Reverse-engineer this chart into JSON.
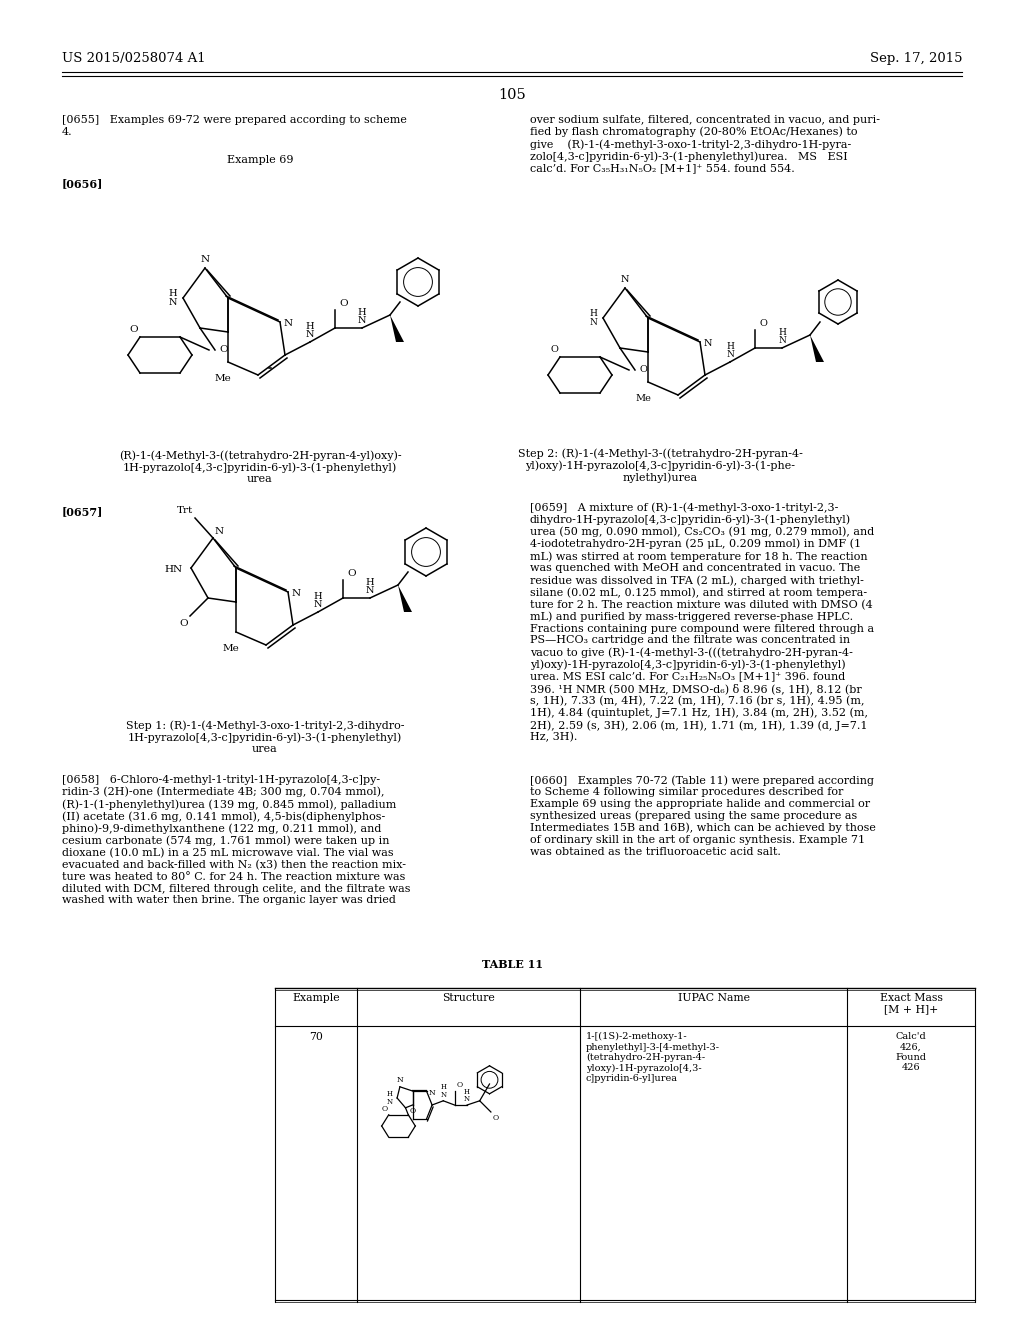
{
  "header_left": "US 2015/0258074 A1",
  "header_right": "Sep. 17, 2015",
  "page_number": "105",
  "bg_color": "#ffffff",
  "para_0655": "[0655]   Examples 69-72 were prepared according to scheme\n4.",
  "para_ex69": "Example 69",
  "para_0656": "[0656]",
  "caption_left": "(R)-1-(4-Methyl-3-((tetrahydro-2H-pyran-4-yl)oxy)-\n1H-pyrazolo[4,3-c]pyridin-6-yl)-3-(1-phenylethyl)\nurea",
  "para_0657": "[0657]",
  "step2_caption": "Step 2: (R)-1-(4-Methyl-3-((tetrahydro-2H-pyran-4-\nyl)oxy)-1H-pyrazolo[4,3-c]pyridin-6-yl)-3-(1-phe-\nnylethyl)urea",
  "step1_caption": "Step 1: (R)-1-(4-Methyl-3-oxo-1-trityl-2,3-dihydro-\n1H-pyrazolo[4,3-c]pyridin-6-yl)-3-(1-phenylethyl)\nurea",
  "right_col_text1": "over sodium sulfate, filtered, concentrated in vacuo, and puri-\nfied by flash chromatography (20-80% EtOAc/Hexanes) to\ngive    (R)-1-(4-methyl-3-oxo-1-trityl-2,3-dihydro-1H-pyra-\nzolo[4,3-c]pyridin-6-yl)-3-(1-phenylethyl)urea.   MS   ESI\ncalc’d. For C₃₅H₃₁N₅O₂ [M+1]⁺ 554. found 554.",
  "para_0658_text": "[0658]   6-Chloro-4-methyl-1-trityl-1H-pyrazolo[4,3-c]py-\nridin-3 (2H)-one (Intermediate 4B; 300 mg, 0.704 mmol),\n(R)-1-(1-phenylethyl)urea (139 mg, 0.845 mmol), palladium\n(II) acetate (31.6 mg, 0.141 mmol), 4,5-bis(diphenylphos-\nphino)-9,9-dimethylxanthene (122 mg, 0.211 mmol), and\ncesium carbonate (574 mg, 1.761 mmol) were taken up in\ndioxane (10.0 mL) in a 25 mL microwave vial. The vial was\nevacuated and back-filled with N₂ (x3) then the reaction mix-\nture was heated to 80° C. for 24 h. The reaction mixture was\ndiluted with DCM, filtered through celite, and the filtrate was\nwashed with water then brine. The organic layer was dried",
  "para_0659_text": "[0659]   A mixture of (R)-1-(4-methyl-3-oxo-1-trityl-2,3-\ndihydro-1H-pyrazolo[4,3-c]pyridin-6-yl)-3-(1-phenylethyl)\nurea (50 mg, 0.090 mmol), Cs₂CO₃ (91 mg, 0.279 mmol), and\n4-iodotetrahydro-2H-pyran (25 μL, 0.209 mmol) in DMF (1\nmL) was stirred at room temperature for 18 h. The reaction\nwas quenched with MeOH and concentrated in vacuo. The\nresidue was dissolved in TFA (2 mL), charged with triethyl-\nsilane (0.02 mL, 0.125 mmol), and stirred at room tempera-\nture for 2 h. The reaction mixture was diluted with DMSO (4\nmL) and purified by mass-triggered reverse-phase HPLC.\nFractions containing pure compound were filtered through a\nPS—HCO₃ cartridge and the filtrate was concentrated in\nvacuo to give (R)-1-(4-methyl-3-(((tetrahydro-2H-pyran-4-\nyl)oxy)-1H-pyrazolo[4,3-c]pyridin-6-yl)-3-(1-phenylethyl)\nurea. MS ESI calc’d. For C₂₁H₂₅N₅O₃ [M+1]⁺ 396. found\n396. ¹H NMR (500 MHz, DMSO-d₆) δ 8.96 (s, 1H), 8.12 (br\ns, 1H), 7.33 (m, 4H), 7.22 (m, 1H), 7.16 (br s, 1H), 4.95 (m,\n1H), 4.84 (quintuplet, J=7.1 Hz, 1H), 3.84 (m, 2H), 3.52 (m,\n2H), 2.59 (s, 3H), 2.06 (m, 1H), 1.71 (m, 1H), 1.39 (d, J=7.1\nHz, 3H).",
  "para_0660_text": "[0660]   Examples 70-72 (Table 11) were prepared according\nto Scheme 4 following similar procedures described for\nExample 69 using the appropriate halide and commercial or\nsynthesized ureas (prepared using the same procedure as\nIntermediates 15B and 16B), which can be achieved by those\nof ordinary skill in the art of organic synthesis. Example 71\nwas obtained as the trifluoroacetic acid salt.",
  "table_title": "TABLE 11",
  "table_headers": [
    "Example",
    "Structure",
    "IUPAC Name",
    "Exact Mass\n[M + H]+"
  ],
  "table_row1_example": "70",
  "table_row1_name": "1-[(1S)-2-methoxy-1-\nphenylethyl]-3-[4-methyl-3-\n(tetrahydro-2H-pyran-4-\nyloxy)-1H-pyrazolo[4,3-\nc]pyridin-6-yl]urea",
  "table_row1_mass": "Calc'd\n426,\nFound\n426"
}
